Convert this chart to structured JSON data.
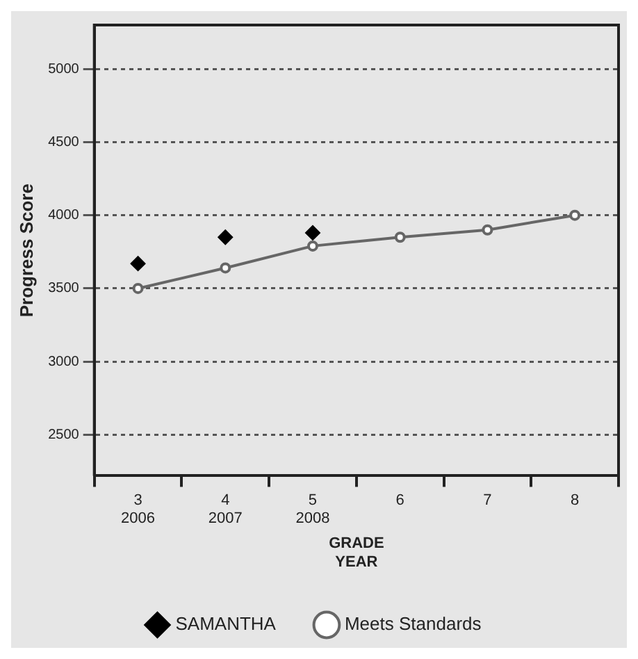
{
  "chart_data": {
    "type": "line",
    "ylabel": "Progress Score",
    "xlabel": "GRADE\nYEAR",
    "categories": [
      "3\n2006",
      "4\n2007",
      "5\n2008",
      "6",
      "7",
      "8"
    ],
    "series": [
      {
        "name": "SAMANTHA",
        "type": "scatter",
        "color": "#000000",
        "marker": "diamond",
        "values": [
          3670,
          3850,
          3880,
          null,
          null,
          null
        ]
      },
      {
        "name": "Meets Standards",
        "type": "line",
        "color": "#666666",
        "marker": "circle",
        "line_style": "solid",
        "values": [
          3500,
          3640,
          3790,
          3850,
          3900,
          4000
        ]
      }
    ],
    "ylim": [
      2220,
      5300
    ],
    "yticks": [
      2500,
      3000,
      3500,
      4000,
      4500,
      5000
    ],
    "grid": "y",
    "legend": "bottom"
  }
}
